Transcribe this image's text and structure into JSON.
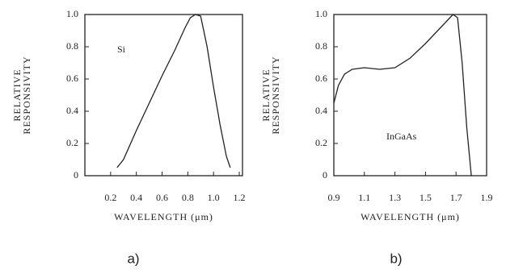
{
  "chart_data": [
    {
      "type": "line",
      "ylabel": [
        "RELATIVE",
        "RESPONSIVITY"
      ],
      "xlabel": "WAVELENGTH (μm)",
      "annotation": "Si",
      "caption": "a)",
      "xlim": [
        0,
        1.2
      ],
      "ylim": [
        0,
        1
      ],
      "xticks": [
        0.2,
        0.4,
        0.6,
        0.8,
        {
          "value": 1,
          "label": "1.0"
        },
        1.2
      ],
      "yticks": [
        {
          "value": 0,
          "label": "0"
        },
        0.2,
        0.4,
        0.6,
        0.8,
        {
          "value": 1,
          "label": "1.0"
        }
      ],
      "x": [
        0.25,
        0.3,
        0.4,
        0.5,
        0.6,
        0.7,
        0.78,
        0.82,
        0.86,
        0.9,
        0.95,
        1.0,
        1.05,
        1.1,
        1.13
      ],
      "series": [
        {
          "color": "#222222",
          "values": [
            0.05,
            0.1,
            0.28,
            0.45,
            0.62,
            0.78,
            0.92,
            0.98,
            1.0,
            0.99,
            0.8,
            0.55,
            0.32,
            0.12,
            0.05
          ]
        }
      ]
    },
    {
      "type": "line",
      "ylabel": [
        "RELATIVE",
        "RESPONSIVITY"
      ],
      "xlabel": "WAVELENGTH (μm)",
      "annotation": "InGaAs",
      "caption": "b)",
      "xlim": [
        0.9,
        1.9
      ],
      "ylim": [
        0,
        1
      ],
      "xticks": [
        0.9,
        1.1,
        1.3,
        1.5,
        1.7,
        1.9
      ],
      "yticks": [
        {
          "value": 0,
          "label": "0"
        },
        0.2,
        0.4,
        0.6,
        0.8,
        {
          "value": 1,
          "label": "1.0"
        }
      ],
      "x": [
        0.9,
        0.93,
        0.97,
        1.02,
        1.1,
        1.2,
        1.3,
        1.4,
        1.5,
        1.6,
        1.65,
        1.68,
        1.71,
        1.74,
        1.77,
        1.8
      ],
      "series": [
        {
          "color": "#222222",
          "values": [
            0.45,
            0.56,
            0.63,
            0.66,
            0.67,
            0.66,
            0.67,
            0.73,
            0.82,
            0.92,
            0.97,
            1.0,
            0.98,
            0.7,
            0.3,
            0.0
          ]
        }
      ]
    }
  ]
}
